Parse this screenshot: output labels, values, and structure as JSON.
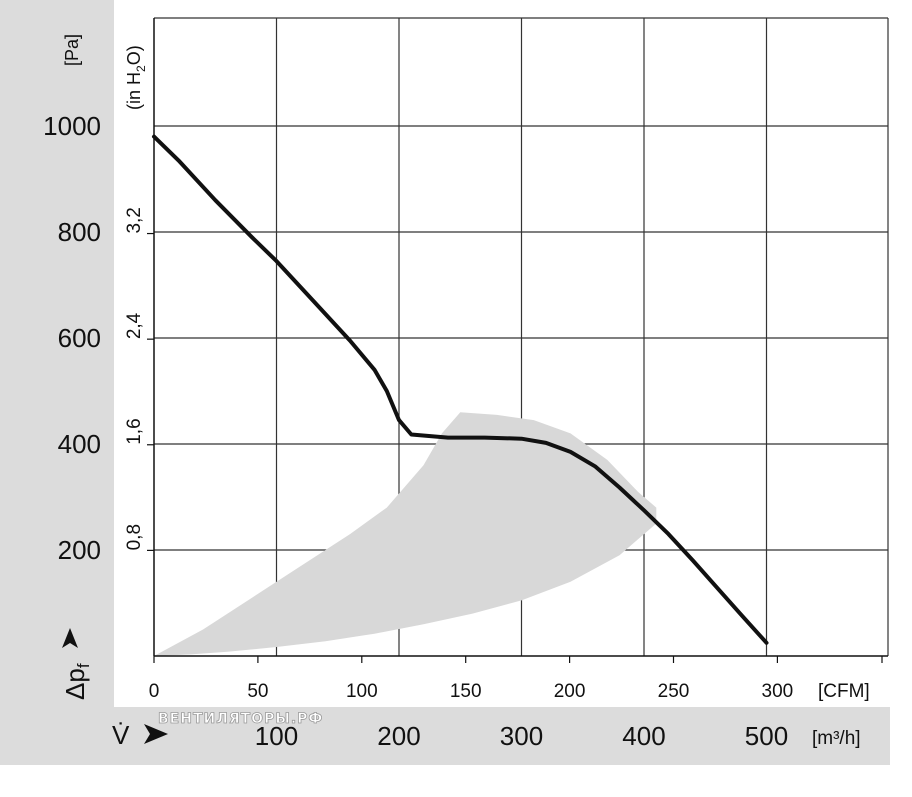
{
  "chart_data": {
    "type": "line",
    "y_unit_pa": "[Pa]",
    "y_unit_inh2o": "(in H",
    "y_unit_inh2o_sub": "2",
    "y_unit_inh2o_end": "O)",
    "y_label_symbol": "Δp",
    "y_label_sub": "f",
    "x_label_symbol": "V̇",
    "x_unit_cfm": "[CFM]",
    "x_unit_m3h": "[m³/h]",
    "pa_ticks": [
      {
        "value": 200,
        "label": "200"
      },
      {
        "value": 400,
        "label": "400"
      },
      {
        "value": 600,
        "label": "600"
      },
      {
        "value": 800,
        "label": "800"
      },
      {
        "value": 1000,
        "label": "1000"
      }
    ],
    "inh2o_ticks": [
      {
        "value": 0.8,
        "label": "0,8"
      },
      {
        "value": 1.6,
        "label": "1,6"
      },
      {
        "value": 2.4,
        "label": "2,4"
      },
      {
        "value": 3.2,
        "label": "3,2"
      }
    ],
    "cfm_ticks": [
      {
        "value": 0,
        "label": "0"
      },
      {
        "value": 50,
        "label": "50"
      },
      {
        "value": 100,
        "label": "100"
      },
      {
        "value": 150,
        "label": "150"
      },
      {
        "value": 200,
        "label": "200"
      },
      {
        "value": 250,
        "label": "250"
      },
      {
        "value": 300,
        "label": "300"
      }
    ],
    "m3h_ticks": [
      {
        "value": 100,
        "label": "100"
      },
      {
        "value": 200,
        "label": "200"
      },
      {
        "value": 300,
        "label": "300"
      },
      {
        "value": 400,
        "label": "400"
      },
      {
        "value": 500,
        "label": "500"
      }
    ],
    "xlim_m3h": [
      0,
      600
    ],
    "ylim_pa": [
      0,
      1000
    ],
    "grid": true,
    "series": [
      {
        "color": "#111111",
        "x_m3h": [
          0,
          20,
          50,
          80,
          100,
          130,
          160,
          180,
          190,
          200,
          210,
          240,
          270,
          300,
          320,
          340,
          360,
          380,
          400,
          420,
          440,
          460,
          480,
          500
        ],
        "y_pa": [
          980,
          935,
          860,
          790,
          745,
          670,
          595,
          540,
          500,
          445,
          418,
          412,
          412,
          410,
          402,
          385,
          358,
          318,
          275,
          230,
          180,
          128,
          76,
          25
        ]
      }
    ],
    "operating_range": {
      "color": "#d8d8d8",
      "upper": {
        "x_m3h": [
          0,
          40,
          80,
          120,
          160,
          190,
          220,
          235,
          250,
          280,
          310,
          340,
          370,
          395,
          410
        ],
        "y_pa": [
          0,
          50,
          110,
          170,
          230,
          280,
          360,
          420,
          460,
          455,
          445,
          420,
          370,
          310,
          280
        ]
      },
      "lower": {
        "x_m3h": [
          410,
          380,
          340,
          300,
          260,
          220,
          180,
          140,
          100,
          60,
          30,
          0
        ],
        "y_pa": [
          250,
          190,
          140,
          105,
          80,
          60,
          42,
          28,
          17,
          8,
          3,
          0
        ]
      }
    }
  },
  "watermark": "ВЕНТИЛЯТОРЫ.РФ"
}
